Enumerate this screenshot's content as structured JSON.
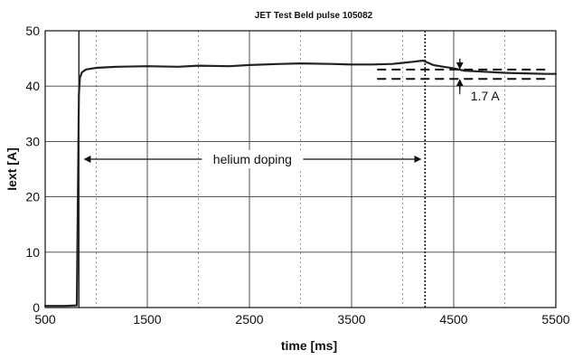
{
  "chart_data": {
    "type": "line",
    "title": "JET Test Beld pulse 105082",
    "xlabel": "time [ms]",
    "ylabel": "Iext [A]",
    "xlim": [
      500,
      5500
    ],
    "ylim": [
      0,
      50
    ],
    "x_ticks": [
      500,
      1500,
      2500,
      3500,
      4500,
      5500
    ],
    "y_ticks": [
      0,
      10,
      20,
      30,
      40,
      50
    ],
    "grid": true,
    "series": [
      {
        "color": "#222222",
        "x": [
          500,
          700,
          810,
          830,
          840,
          860,
          900,
          1000,
          1200,
          1500,
          1800,
          2000,
          2300,
          2500,
          2800,
          3000,
          3300,
          3500,
          3700,
          3900,
          4000,
          4100,
          4200,
          4300,
          4400,
          4500,
          4600,
          4800,
          5000,
          5200,
          5400,
          5500
        ],
        "y": [
          0.3,
          0.3,
          0.4,
          38.5,
          41.5,
          42.5,
          43.0,
          43.3,
          43.5,
          43.6,
          43.5,
          43.7,
          43.6,
          43.8,
          44.0,
          44.1,
          44.0,
          43.9,
          43.9,
          44.0,
          44.2,
          44.4,
          44.6,
          43.8,
          43.5,
          43.2,
          42.8,
          42.6,
          42.4,
          42.3,
          42.2,
          42.2
        ]
      }
    ],
    "annotations": [
      {
        "text": "helium doping",
        "x_start": 840,
        "x_end": 4220,
        "y": 26.8
      },
      {
        "text": "1.7 A",
        "x": 4560,
        "y_low": 41.3,
        "y_high": 43.0
      }
    ],
    "reference_lines": {
      "vertical": [
        830,
        4220
      ],
      "horizontal_dashed": [
        {
          "x_start": 3750,
          "x_end": 5400,
          "y": 43.0
        },
        {
          "x_start": 3750,
          "x_end": 5400,
          "y": 41.3
        }
      ]
    }
  }
}
